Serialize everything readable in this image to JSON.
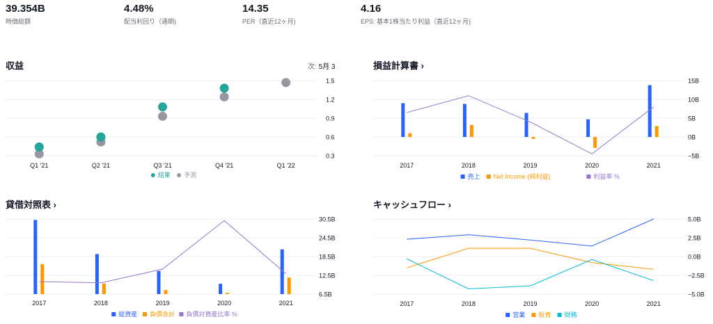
{
  "stats": [
    {
      "value": "39.354B",
      "label": "時価総額"
    },
    {
      "value": "4.48%",
      "label": "配当利回り（通期)"
    },
    {
      "value": "14.35",
      "label": "PER（直近12ヶ月)"
    },
    {
      "value": "4.16",
      "label": "EPS: 基本1株当たり利益（直近12ヶ月)"
    }
  ],
  "earnings": {
    "title": "収益",
    "next_label": "次:",
    "next_date": "5月 3",
    "legend": [
      {
        "name": "結果",
        "color": "#26a69a"
      },
      {
        "name": "予測",
        "color": "#9598a1"
      }
    ]
  },
  "income": {
    "title": "損益計算書 ›",
    "legend": [
      {
        "name": "売上",
        "color": "#2962ff"
      },
      {
        "name": "Net Income (純利益)",
        "color": "#ff9800"
      },
      {
        "name": "利益率 %",
        "color": "#9575cd"
      }
    ]
  },
  "balance": {
    "title": "貸借対照表 ›",
    "legend": [
      {
        "name": "総資産",
        "color": "#2962ff"
      },
      {
        "name": "負債合計",
        "color": "#ff9800"
      },
      {
        "name": "負債対資産比率 %",
        "color": "#9575cd"
      }
    ]
  },
  "cashflow": {
    "title": "キャッシュフロー ›",
    "legend": [
      {
        "name": "営業",
        "color": "#2962ff"
      },
      {
        "name": "投資",
        "color": "#ff9800"
      },
      {
        "name": "財務",
        "color": "#00bcd4"
      }
    ]
  },
  "chart_data": [
    {
      "type": "scatter",
      "categories": [
        "Q1 '21",
        "Q2 '21",
        "Q3 '21",
        "Q4 '21",
        "Q1 '22"
      ],
      "series": [
        {
          "name": "結果",
          "values": [
            0.44,
            0.6,
            1.08,
            1.38,
            null
          ]
        },
        {
          "name": "予測",
          "values": [
            0.33,
            0.52,
            0.93,
            1.24,
            1.47
          ]
        }
      ],
      "yticks": [
        "1.5",
        "1.2",
        "0.9",
        "0.6",
        "0.3"
      ],
      "ylim": [
        0.3,
        1.5
      ],
      "grid": true
    },
    {
      "type": "bar",
      "categories": [
        "2017",
        "2018",
        "2019",
        "2020",
        "2021"
      ],
      "series": [
        {
          "name": "売上",
          "values": [
            9.0,
            8.8,
            6.4,
            4.7,
            13.8
          ]
        },
        {
          "name": "Net Income (純利益)",
          "values": [
            1.0,
            3.2,
            -0.5,
            -2.9,
            2.9
          ]
        },
        {
          "name": "利益率 %",
          "values": [
            6.5,
            11.0,
            4.0,
            -4.5,
            8.0
          ]
        }
      ],
      "yticks": [
        "15B",
        "10B",
        "5B",
        "0B",
        "−5B"
      ],
      "ylim": [
        -5,
        15
      ],
      "grid": true
    },
    {
      "type": "bar",
      "categories": [
        "2017",
        "2018",
        "2019",
        "2020",
        "2021"
      ],
      "series": [
        {
          "name": "総資産",
          "values": [
            30.2,
            19.3,
            13.9,
            9.8,
            20.8
          ]
        },
        {
          "name": "負債合計",
          "values": [
            16.1,
            9.9,
            7.8,
            6.9,
            11.8
          ]
        },
        {
          "name": "負債対資産比率 %",
          "values": [
            10.5,
            10.1,
            14.5,
            30.0,
            13.0
          ]
        }
      ],
      "yticks": [
        "30.5B",
        "24.5B",
        "18.5B",
        "12.5B",
        "6.5B"
      ],
      "ylim": [
        6.5,
        30.5
      ],
      "grid": true
    },
    {
      "type": "line",
      "categories": [
        "2017",
        "2018",
        "2019",
        "2020",
        "2021"
      ],
      "series": [
        {
          "name": "営業",
          "values": [
            2.3,
            2.9,
            2.2,
            1.4,
            5.0
          ]
        },
        {
          "name": "投資",
          "values": [
            -1.5,
            1.1,
            1.1,
            -0.8,
            -1.7
          ]
        },
        {
          "name": "財務",
          "values": [
            -0.3,
            -4.3,
            -3.9,
            -0.4,
            -3.2
          ]
        }
      ],
      "yticks": [
        "5.0B",
        "2.5B",
        "0.0B",
        "−2.5B",
        "−5.0B"
      ],
      "ylim": [
        -5,
        5
      ],
      "grid": true
    }
  ]
}
